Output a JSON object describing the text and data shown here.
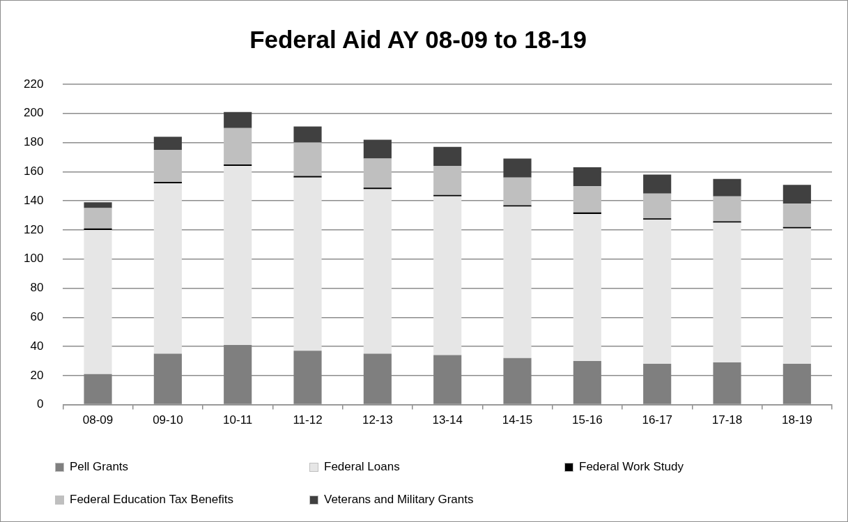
{
  "chart_data": {
    "type": "bar",
    "title": "Federal Aid AY 08-09 to 18-19",
    "categories": [
      "08-09",
      "09-10",
      "10-11",
      "11-12",
      "12-13",
      "13-14",
      "14-15",
      "15-16",
      "16-17",
      "17-18",
      "18-19"
    ],
    "stacked": true,
    "series": [
      {
        "name": "Pell Grants",
        "color": "#7f7f7f",
        "values": [
          21,
          35,
          41,
          37,
          35,
          34,
          32,
          30,
          28,
          29,
          28
        ]
      },
      {
        "name": "Federal Loans",
        "color": "#e6e6e6",
        "values": [
          99,
          117,
          123,
          119,
          113,
          109,
          104,
          101,
          99,
          96,
          93
        ]
      },
      {
        "name": "Federal Work Study",
        "color": "#000000",
        "values": [
          1,
          1,
          1,
          1,
          1,
          1,
          1,
          1,
          1,
          1,
          1
        ]
      },
      {
        "name": "Federal Education Tax Benefits",
        "color": "#bfbfbf",
        "values": [
          14,
          22,
          25,
          23,
          20,
          20,
          19,
          18,
          17,
          17,
          16
        ]
      },
      {
        "name": "Veterans and Military Grants",
        "color": "#404040",
        "values": [
          4,
          9,
          11,
          11,
          13,
          13,
          13,
          13,
          13,
          12,
          13
        ]
      }
    ],
    "ylim": [
      0,
      220
    ],
    "yticks": [
      0,
      20,
      40,
      60,
      80,
      100,
      120,
      140,
      160,
      180,
      200,
      220
    ],
    "grid": "y",
    "legend": "bottom"
  }
}
